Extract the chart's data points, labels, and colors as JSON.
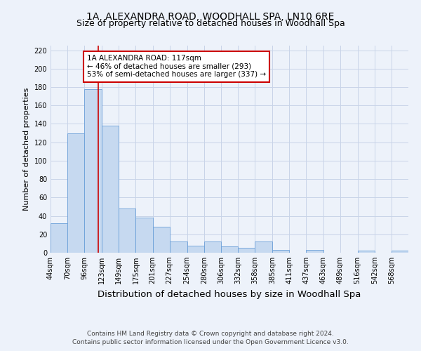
{
  "title": "1A, ALEXANDRA ROAD, WOODHALL SPA, LN10 6RE",
  "subtitle": "Size of property relative to detached houses in Woodhall Spa",
  "xlabel": "Distribution of detached houses by size in Woodhall Spa",
  "ylabel": "Number of detached properties",
  "bar_color": "#c6d9f0",
  "bar_edge_color": "#6a9fd8",
  "bin_labels": [
    "44sqm",
    "70sqm",
    "96sqm",
    "123sqm",
    "149sqm",
    "175sqm",
    "201sqm",
    "227sqm",
    "254sqm",
    "280sqm",
    "306sqm",
    "332sqm",
    "358sqm",
    "385sqm",
    "411sqm",
    "437sqm",
    "463sqm",
    "489sqm",
    "516sqm",
    "542sqm",
    "568sqm"
  ],
  "bar_heights": [
    32,
    130,
    178,
    138,
    48,
    38,
    28,
    12,
    8,
    12,
    7,
    5,
    12,
    3,
    0,
    3,
    0,
    0,
    2,
    0,
    2
  ],
  "ylim": [
    0,
    225
  ],
  "yticks": [
    0,
    20,
    40,
    60,
    80,
    100,
    120,
    140,
    160,
    180,
    200,
    220
  ],
  "vline_x": 117,
  "bin_edges_values": [
    44,
    70,
    96,
    123,
    149,
    175,
    201,
    227,
    254,
    280,
    306,
    332,
    358,
    385,
    411,
    437,
    463,
    489,
    516,
    542,
    568,
    594
  ],
  "annotation_title": "1A ALEXANDRA ROAD: 117sqm",
  "annotation_line1": "← 46% of detached houses are smaller (293)",
  "annotation_line2": "53% of semi-detached houses are larger (337) →",
  "annotation_box_color": "#ffffff",
  "annotation_box_edge_color": "#cc0000",
  "vline_color": "#cc0000",
  "grid_color": "#c8d4e8",
  "bg_color": "#edf2fa",
  "footer_line1": "Contains HM Land Registry data © Crown copyright and database right 2024.",
  "footer_line2": "Contains public sector information licensed under the Open Government Licence v3.0.",
  "title_fontsize": 10,
  "subtitle_fontsize": 9,
  "xlabel_fontsize": 9.5,
  "ylabel_fontsize": 8,
  "tick_fontsize": 7,
  "annotation_fontsize": 7.5,
  "footer_fontsize": 6.5
}
